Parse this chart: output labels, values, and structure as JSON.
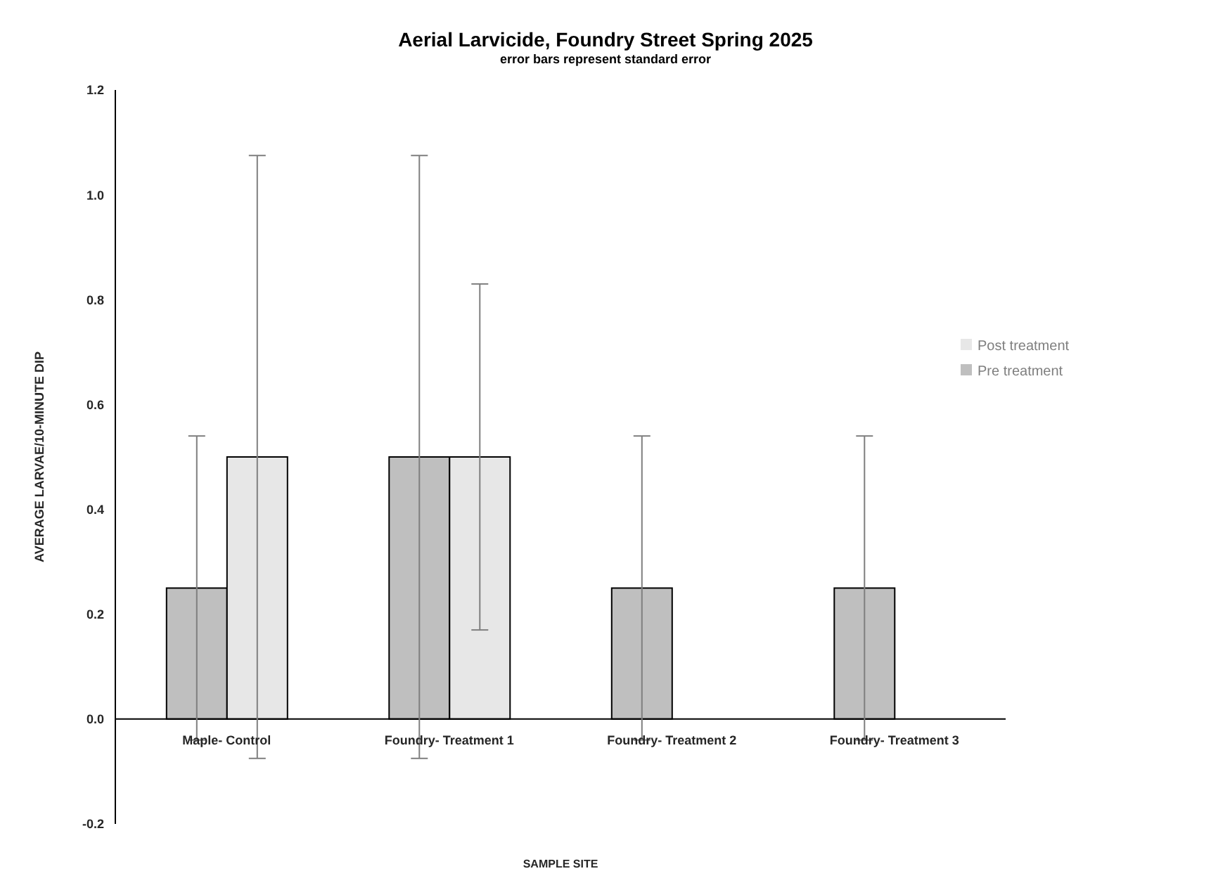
{
  "chart_data": {
    "type": "bar",
    "title": "Aerial Larvicide, Foundry Street Spring 2025",
    "subtitle": "error bars represent standard error",
    "xlabel": "SAMPLE SITE",
    "ylabel": "AVERAGE LARVAE/10-MINUTE DIP",
    "categories": [
      "Maple- Control",
      "Foundry- Treatment 1",
      "Foundry- Treatment 2",
      "Foundry- Treatment 3"
    ],
    "series": [
      {
        "name": "Pre treatment",
        "color": "#bfbfbf",
        "values": [
          0.25,
          0.5,
          0.25,
          0.25
        ],
        "errors": [
          0.29,
          0.575,
          0.29,
          0.29
        ]
      },
      {
        "name": "Post treatment",
        "color": "#e7e7e7",
        "values": [
          0.5,
          0.5,
          0,
          0
        ],
        "errors": [
          0.575,
          0.33,
          0,
          0
        ]
      }
    ],
    "ylim": [
      -0.2,
      1.2
    ],
    "yticks": [
      -0.2,
      {
        "value": 0,
        "label": "0.0"
      },
      0.2,
      0.4,
      0.6,
      0.8,
      {
        "value": 1,
        "label": "1.0"
      },
      1.2
    ],
    "legend": "right"
  }
}
